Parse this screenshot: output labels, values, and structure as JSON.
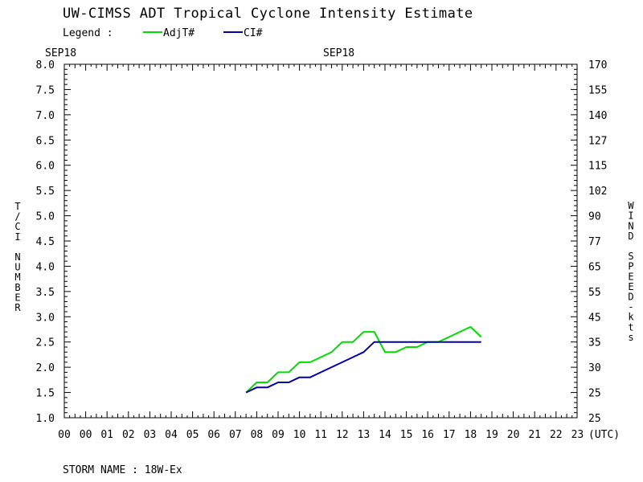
{
  "title": "UW-CIMSS ADT Tropical Cyclone Intensity Estimate",
  "legend": {
    "label": "Legend :",
    "entries": [
      {
        "name": "AdjT#",
        "color": "#00dd00"
      },
      {
        "name": "CI#",
        "color": "#0000aa"
      }
    ]
  },
  "date_labels": {
    "left": "SEP18",
    "center": "SEP18"
  },
  "y_left_label": "T/CI NUMBER",
  "y_right_label": "WIND SPEED-kts",
  "storm_name": "STORM NAME : 18W-Ex",
  "chart_data": {
    "type": "line",
    "x_unit_label": "(UTC)",
    "x_tick_labels": [
      "00",
      "00",
      "01",
      "02",
      "03",
      "04",
      "05",
      "06",
      "07",
      "08",
      "09",
      "10",
      "11",
      "12",
      "13",
      "14",
      "15",
      "16",
      "17",
      "18",
      "19",
      "20",
      "21",
      "22",
      "23"
    ],
    "ylim": [
      1.0,
      8.0
    ],
    "y_ticks_left": [
      "1.0",
      "1.5",
      "2.0",
      "2.5",
      "3.0",
      "3.5",
      "4.0",
      "4.5",
      "5.0",
      "5.5",
      "6.0",
      "6.5",
      "7.0",
      "7.5",
      "8.0"
    ],
    "y_ticks_right": [
      "25",
      "25",
      "30",
      "35",
      "45",
      "55",
      "65",
      "77",
      "90",
      "102",
      "115",
      "127",
      "140",
      "155",
      "170"
    ],
    "series": [
      {
        "name": "AdjT#",
        "color": "#00dd00",
        "x": [
          7.5,
          8.0,
          8.5,
          9.0,
          9.5,
          10.0,
          10.5,
          11.0,
          11.5,
          12.0,
          12.5,
          13.0,
          13.5,
          14.0,
          14.5,
          15.0,
          15.5,
          16.0,
          16.5,
          17.0,
          17.5,
          18.0,
          18.5
        ],
        "values": [
          1.5,
          1.7,
          1.7,
          1.9,
          1.9,
          2.1,
          2.1,
          2.2,
          2.3,
          2.5,
          2.5,
          2.7,
          2.7,
          2.3,
          2.3,
          2.4,
          2.4,
          2.5,
          2.5,
          2.6,
          2.7,
          2.8,
          2.6
        ]
      },
      {
        "name": "CI#",
        "color": "#0000aa",
        "x": [
          7.5,
          8.0,
          8.5,
          9.0,
          9.5,
          10.0,
          10.5,
          11.0,
          11.5,
          12.0,
          12.5,
          13.0,
          13.5,
          14.0,
          14.5,
          15.0,
          15.5,
          16.0,
          16.5,
          17.0,
          17.5,
          18.0,
          18.5
        ],
        "values": [
          1.5,
          1.6,
          1.6,
          1.7,
          1.7,
          1.8,
          1.8,
          1.9,
          2.0,
          2.1,
          2.2,
          2.3,
          2.5,
          2.5,
          2.5,
          2.5,
          2.5,
          2.5,
          2.5,
          2.5,
          2.5,
          2.5,
          2.5
        ]
      }
    ]
  }
}
